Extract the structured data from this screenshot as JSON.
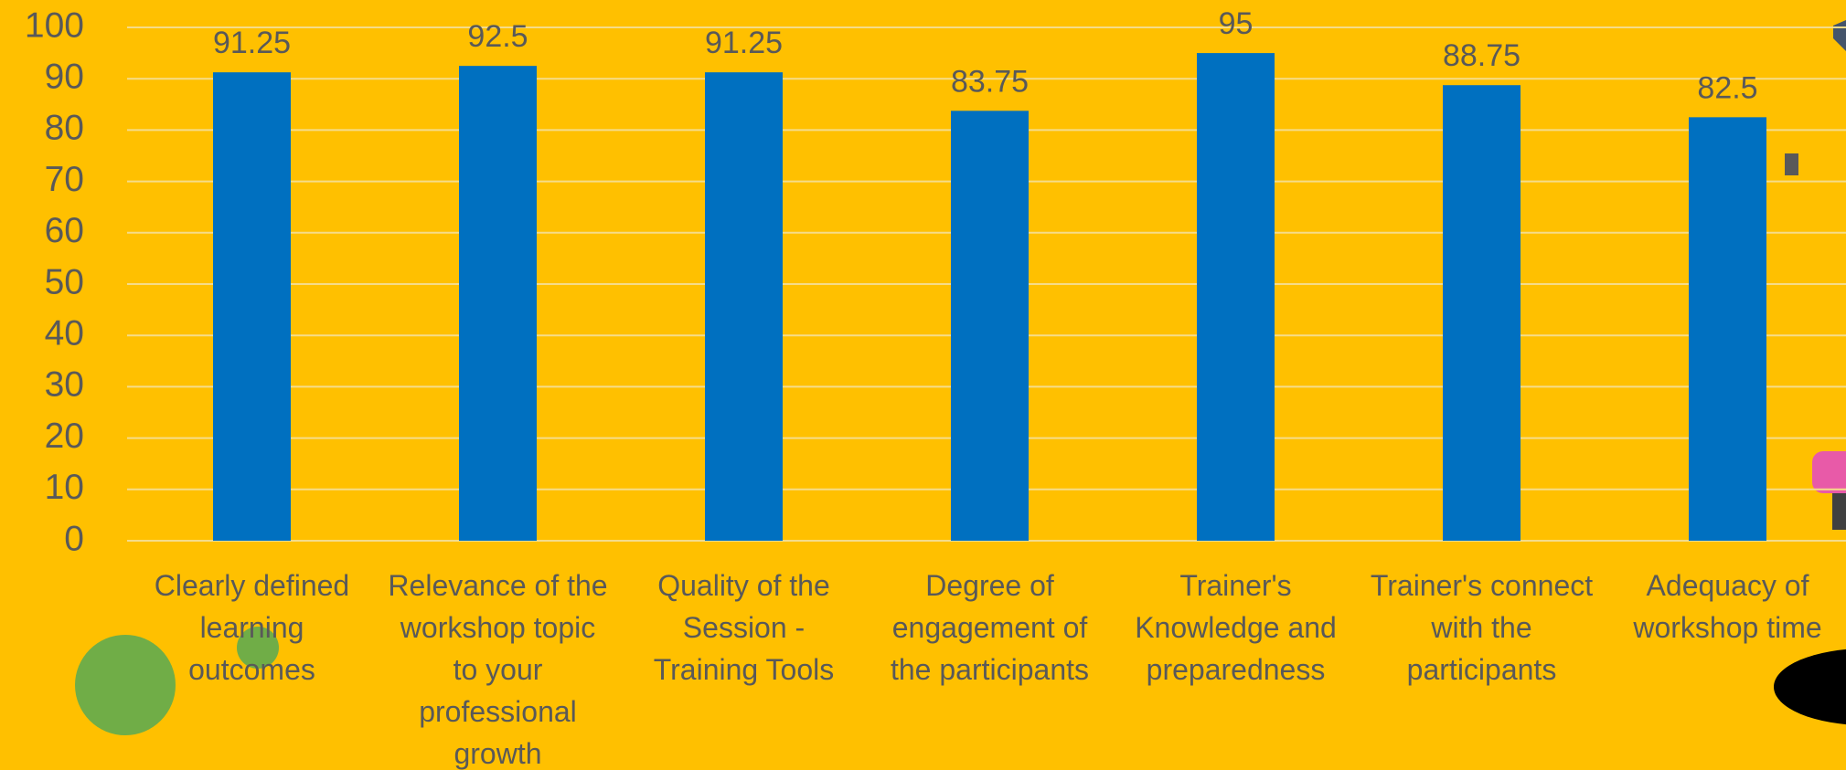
{
  "chart_data": {
    "type": "bar",
    "categories": [
      "Clearly defined learning outcomes",
      "Relevance of the workshop topic to your professional growth",
      "Quality of the Session - Training Tools",
      "Degree of engagement of the participants",
      "Trainer's Knowledge and preparedness",
      "Trainer's connect with the participants",
      "Adequacy of workshop time"
    ],
    "values": [
      91.25,
      92.5,
      91.25,
      83.75,
      95,
      88.75,
      82.5
    ],
    "color": "#0070c0",
    "ylim": [
      0,
      100
    ],
    "yticks": [
      0,
      10,
      20,
      30,
      40,
      50,
      60,
      70,
      80,
      90,
      100
    ],
    "grid": true
  }
}
